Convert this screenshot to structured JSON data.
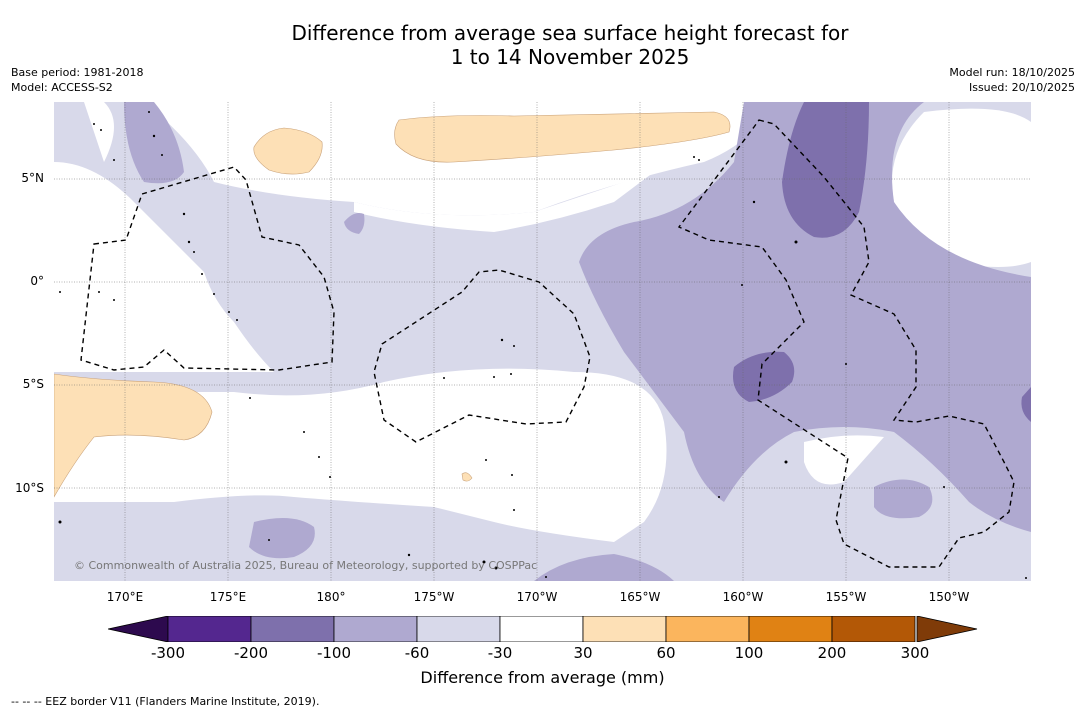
{
  "title_line1": "Difference from average sea surface height forecast for",
  "title_line2": "1 to 14 November 2025",
  "base_period": "Base period: 1981-2018",
  "model": "Model: ACCESS-S2",
  "model_run": "Model run: 18/10/2025",
  "issued": "Issued: 20/10/2025",
  "map": {
    "lat_labels": [
      "5°N",
      "0°",
      "5°S",
      "10°S"
    ],
    "lon_labels": [
      "170°E",
      "175°E",
      "180°",
      "175°W",
      "170°W",
      "165°W",
      "160°W",
      "155°W",
      "150°W"
    ],
    "copyright": "© Commonwealth of Australia 2025, Bureau of Meteorology, supported by COSPPac",
    "colors": {
      "neg_300_200": "#54278f",
      "neg_200_100": "#7e70ac",
      "neg_100_60": "#afa9d0",
      "neg_60_30": "#d8d9ea",
      "neutral": "#ffffff",
      "pos_30_60": "#fde0b6",
      "pos_60_100": "#fbb55d",
      "pos_100_200": "#e08214",
      "pos_200_300": "#b35806",
      "over_300": "#7f3b08"
    }
  },
  "colorbar": {
    "ticks": [
      "-300",
      "-200",
      "-100",
      "-60",
      "-30",
      "30",
      "60",
      "100",
      "200",
      "300"
    ],
    "colors": [
      "#54278f",
      "#7e70ac",
      "#afa9d0",
      "#d8d9ea",
      "#ffffff",
      "#fde0b6",
      "#fbb55d",
      "#e08214",
      "#b35806"
    ],
    "under_color": "#2d0a4e",
    "over_color": "#7f3b08",
    "label": "Difference from average (mm)"
  },
  "footnote": "--  --  -- EEZ border V11 (Flanders Marine Institute, 2019)."
}
